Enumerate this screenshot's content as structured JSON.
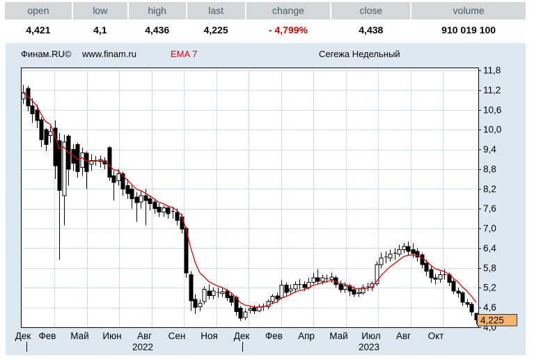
{
  "quote": {
    "columns": [
      {
        "label": "open",
        "value": "4,421"
      },
      {
        "label": "low",
        "value": "4,1"
      },
      {
        "label": "high",
        "value": "4,436"
      },
      {
        "label": "last",
        "value": "4,225"
      },
      {
        "label": "change",
        "value": "- 4,799%",
        "negative": true
      },
      {
        "label": "close",
        "value": "4,438"
      },
      {
        "label": "volume",
        "value": "910 019 100"
      }
    ]
  },
  "title_bar": {
    "brand": "Финам.RU©",
    "site": "www.finam.ru",
    "indicator": "EMA 7",
    "instrument": "Сегежа Недельный"
  },
  "colors": {
    "panel_bg": "#dce9f3",
    "grid": "#ccdded",
    "ema_line": "#e60000",
    "change_negative": "#d00000",
    "candle": "#000000",
    "badge_bg": "#f7b471",
    "badge_border": "#333333",
    "header_text": "#3f5a6d"
  },
  "chart_data": {
    "type": "candlestick",
    "title": "Сегежа Недельный",
    "instrument": "Сегежа",
    "timeframe": "Недельный",
    "ema_period": 7,
    "last_price_label": "4,225",
    "y_axis": {
      "min": 4.0,
      "max": 11.8,
      "step": 0.6,
      "labels": [
        "11,8",
        "11,2",
        "10,6",
        "10,0",
        "9,4",
        "8,8",
        "8,2",
        "7,6",
        "7,0",
        "6,4",
        "5,8",
        "5,2",
        "4,6",
        "4,0"
      ]
    },
    "x_axis": {
      "months": [
        "Дек",
        "Фев",
        "Май",
        "Июн",
        "Авг",
        "Сен",
        "Ноя",
        "Дек",
        "Фев",
        "Апр",
        "Май",
        "Июл",
        "Авг",
        "Окт"
      ],
      "years": [
        "2022",
        "2023"
      ]
    },
    "ohlc": [
      [
        10.93,
        11.36,
        10.78,
        11.12
      ],
      [
        11.25,
        11.32,
        10.55,
        10.72
      ],
      [
        10.72,
        10.95,
        10.2,
        10.48
      ],
      [
        10.6,
        10.75,
        10.05,
        10.28
      ],
      [
        10.3,
        10.38,
        9.46,
        9.7
      ],
      [
        10.0,
        10.06,
        9.35,
        9.55
      ],
      [
        9.82,
        10.1,
        9.6,
        9.94
      ],
      [
        10.05,
        10.28,
        8.5,
        8.9
      ],
      [
        9.66,
        9.9,
        6.05,
        8.15
      ],
      [
        8.0,
        9.85,
        7.1,
        9.62
      ],
      [
        9.8,
        9.86,
        8.3,
        8.8
      ],
      [
        9.4,
        9.56,
        8.75,
        8.98
      ],
      [
        9.55,
        9.6,
        8.55,
        8.72
      ],
      [
        8.85,
        9.45,
        8.6,
        9.3
      ],
      [
        9.28,
        9.34,
        8.2,
        8.72
      ],
      [
        8.95,
        9.25,
        8.75,
        9.06
      ],
      [
        9.06,
        9.2,
        8.9,
        9.04
      ],
      [
        9.03,
        9.21,
        8.85,
        9.08
      ],
      [
        9.05,
        9.16,
        8.8,
        8.96
      ],
      [
        9.45,
        9.5,
        8.45,
        8.56
      ],
      [
        8.6,
        8.76,
        7.85,
        8.4
      ],
      [
        8.45,
        8.8,
        8.3,
        8.66
      ],
      [
        8.66,
        8.72,
        8.0,
        8.2
      ],
      [
        8.3,
        8.5,
        7.9,
        8.06
      ],
      [
        8.2,
        8.3,
        7.6,
        7.9
      ],
      [
        7.95,
        8.1,
        7.2,
        7.78
      ],
      [
        7.8,
        8.15,
        7.6,
        8.0
      ],
      [
        8.0,
        8.2,
        7.1,
        7.85
      ],
      [
        7.9,
        8.0,
        7.55,
        7.75
      ],
      [
        7.8,
        7.9,
        7.45,
        7.6
      ],
      [
        7.65,
        7.76,
        7.35,
        7.5
      ],
      [
        7.5,
        7.7,
        7.35,
        7.62
      ],
      [
        7.62,
        7.7,
        7.3,
        7.45
      ],
      [
        7.5,
        7.66,
        7.3,
        7.52
      ],
      [
        7.49,
        7.6,
        7.1,
        7.25
      ],
      [
        7.35,
        7.45,
        6.85,
        6.98
      ],
      [
        7.0,
        7.05,
        5.5,
        5.65
      ],
      [
        5.6,
        5.7,
        4.5,
        4.8
      ],
      [
        4.85,
        5.0,
        4.4,
        4.6
      ],
      [
        4.62,
        4.85,
        4.5,
        4.73
      ],
      [
        4.78,
        5.25,
        4.7,
        5.15
      ],
      [
        5.1,
        5.3,
        4.85,
        4.96
      ],
      [
        4.96,
        5.2,
        4.85,
        5.1
      ],
      [
        5.06,
        5.2,
        4.9,
        5.05
      ],
      [
        5.02,
        5.18,
        4.92,
        5.08
      ],
      [
        5.1,
        5.16,
        4.8,
        4.9
      ],
      [
        4.95,
        5.05,
        4.65,
        4.76
      ],
      [
        4.91,
        4.96,
        4.35,
        4.48
      ],
      [
        4.58,
        4.65,
        4.19,
        4.28
      ],
      [
        4.3,
        4.56,
        4.22,
        4.47
      ],
      [
        4.52,
        4.65,
        4.42,
        4.56
      ],
      [
        4.6,
        4.68,
        4.4,
        4.5
      ],
      [
        4.5,
        4.7,
        4.45,
        4.62
      ],
      [
        4.6,
        4.72,
        4.5,
        4.63
      ],
      [
        4.62,
        4.85,
        4.55,
        4.78
      ],
      [
        4.78,
        5.0,
        4.7,
        4.94
      ],
      [
        4.95,
        5.05,
        4.75,
        4.86
      ],
      [
        4.9,
        5.44,
        4.85,
        5.28
      ],
      [
        5.28,
        5.36,
        4.95,
        5.06
      ],
      [
        5.1,
        5.3,
        5.0,
        5.16
      ],
      [
        5.16,
        5.4,
        5.05,
        5.3
      ],
      [
        5.3,
        5.46,
        5.15,
        5.27
      ],
      [
        5.3,
        5.4,
        5.1,
        5.2
      ],
      [
        5.2,
        5.5,
        5.15,
        5.36
      ],
      [
        5.36,
        5.65,
        5.3,
        5.5
      ],
      [
        5.5,
        5.76,
        5.3,
        5.4
      ],
      [
        5.4,
        5.6,
        5.3,
        5.5
      ],
      [
        5.46,
        5.6,
        5.35,
        5.48
      ],
      [
        5.45,
        5.66,
        5.35,
        5.52
      ],
      [
        5.5,
        5.56,
        5.2,
        5.3
      ],
      [
        5.3,
        5.42,
        5.05,
        5.14
      ],
      [
        5.15,
        5.36,
        5.05,
        5.26
      ],
      [
        5.26,
        5.32,
        4.95,
        5.1
      ],
      [
        5.14,
        5.25,
        4.92,
        5.0
      ],
      [
        5.02,
        5.2,
        4.92,
        5.06
      ],
      [
        5.05,
        5.3,
        4.98,
        5.2
      ],
      [
        5.2,
        5.35,
        5.1,
        5.23
      ],
      [
        5.2,
        5.4,
        5.1,
        5.32
      ],
      [
        5.32,
        6.0,
        5.26,
        5.9
      ],
      [
        5.9,
        6.26,
        5.8,
        6.1
      ],
      [
        6.1,
        6.3,
        5.95,
        6.13
      ],
      [
        6.1,
        6.36,
        6.0,
        6.22
      ],
      [
        6.22,
        6.4,
        6.05,
        6.25
      ],
      [
        6.22,
        6.5,
        6.15,
        6.36
      ],
      [
        6.36,
        6.56,
        6.25,
        6.45
      ],
      [
        6.45,
        6.6,
        6.2,
        6.3
      ],
      [
        6.36,
        6.55,
        6.1,
        6.24
      ],
      [
        6.3,
        6.4,
        6.0,
        6.14
      ],
      [
        6.2,
        6.26,
        5.8,
        5.9
      ],
      [
        5.95,
        6.05,
        5.55,
        5.7
      ],
      [
        5.75,
        5.85,
        5.35,
        5.5
      ],
      [
        5.5,
        5.62,
        5.3,
        5.46
      ],
      [
        5.46,
        5.7,
        5.35,
        5.6
      ],
      [
        5.6,
        5.76,
        5.45,
        5.57
      ],
      [
        5.6,
        5.66,
        5.25,
        5.36
      ],
      [
        5.4,
        5.46,
        5.0,
        5.1
      ],
      [
        5.1,
        5.2,
        4.9,
        5.04
      ],
      [
        5.05,
        5.1,
        4.65,
        4.76
      ],
      [
        4.75,
        4.86,
        4.6,
        4.7
      ],
      [
        4.7,
        4.76,
        4.35,
        4.46
      ],
      [
        4.421,
        4.436,
        4.1,
        4.225
      ]
    ]
  }
}
